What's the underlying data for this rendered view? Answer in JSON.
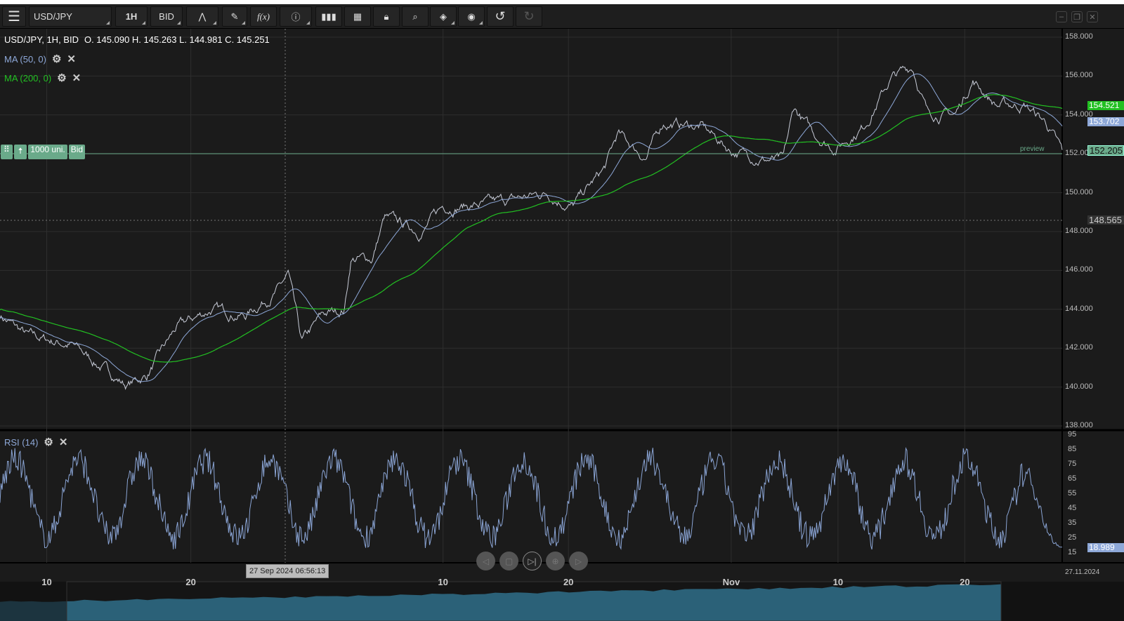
{
  "toolbar": {
    "symbol": "USD/JPY",
    "timeframe": "1H",
    "price_side": "BID",
    "icons": [
      "menu-icon",
      "chart-type-icon",
      "draw-icon",
      "function-icon",
      "info-icon",
      "indicators-icon",
      "calendar-icon",
      "lock-icon",
      "zoom-icon",
      "theme-icon",
      "visibility-icon",
      "undo-icon",
      "redo-icon"
    ]
  },
  "header": {
    "info": "USD/JPY, 1H, BID",
    "ohlc": "O. 145.090 H. 145.263 L. 144.981 C. 145.251"
  },
  "indicators": {
    "ma50": "MA (50, 0)",
    "ma200": "MA (200, 0)",
    "rsi": "RSI (14)"
  },
  "order_line": {
    "units": "1000 uni.",
    "side": "Bid",
    "preview": "preview"
  },
  "price_tags": {
    "ma200": "154.521",
    "ma50": "153.702",
    "bid": "152.205",
    "cursor": "148.565",
    "rsi": "18.989"
  },
  "cursor_time": "27 Sep 2024 06:56:13",
  "colors": {
    "price": "#c8ccd8",
    "ma50": "#8ea8d8",
    "ma200": "#22c022",
    "rsi": "#8aa4d4",
    "accent_tag": "#6aaa8a",
    "volume": "#2f6f89"
  },
  "chart_data": {
    "type": "line",
    "title": "USD/JPY, 1H, BID",
    "ylim": [
      138,
      158
    ],
    "yticks": [
      "158.000",
      "156.000",
      "154.000",
      "152.000",
      "150.000",
      "148.000",
      "146.000",
      "144.000",
      "142.000",
      "140.000",
      "138.000"
    ],
    "rsi_ticks": [
      "95",
      "85",
      "75",
      "65",
      "55",
      "45",
      "35",
      "25",
      "15"
    ],
    "xticks": [
      {
        "label": "10",
        "day": 3.5
      },
      {
        "label": "20",
        "day": 14.3
      },
      {
        "label": "10",
        "day": 33.2
      },
      {
        "label": "20",
        "day": 42.6
      },
      {
        "label": "Nov",
        "day": 54.8
      },
      {
        "label": "10",
        "day": 62.8
      },
      {
        "label": "20",
        "day": 72.3
      }
    ],
    "end_date": "27.11.2024",
    "close_anchors_day_price": [
      [
        0,
        143.7
      ],
      [
        2.1,
        142.6
      ],
      [
        5.3,
        142.2
      ],
      [
        9.5,
        140.1
      ],
      [
        11,
        140.6
      ],
      [
        13.2,
        143
      ],
      [
        15.8,
        144
      ],
      [
        18.4,
        143.7
      ],
      [
        21,
        145.1
      ],
      [
        21.6,
        145.8
      ],
      [
        22.6,
        142.2
      ],
      [
        24.2,
        143.7
      ],
      [
        25.8,
        144
      ],
      [
        26.3,
        146.6
      ],
      [
        27.9,
        146.6
      ],
      [
        28.8,
        148.7
      ],
      [
        31.6,
        148
      ],
      [
        33.2,
        149.3
      ],
      [
        36.8,
        149.4
      ],
      [
        41,
        150
      ],
      [
        42.9,
        149.3
      ],
      [
        45.3,
        151.2
      ],
      [
        46.3,
        153
      ],
      [
        48.4,
        151.8
      ],
      [
        49.7,
        153.6
      ],
      [
        52.6,
        153.4
      ],
      [
        54.7,
        152.2
      ],
      [
        56.8,
        151.8
      ],
      [
        58.7,
        151.6
      ],
      [
        59.5,
        154.3
      ],
      [
        61,
        153
      ],
      [
        62.6,
        152.3
      ],
      [
        64.7,
        153.4
      ],
      [
        66.8,
        155.9
      ],
      [
        68.4,
        156.5
      ],
      [
        69.5,
        154.1
      ],
      [
        71.6,
        154
      ],
      [
        72.9,
        155.8
      ],
      [
        74.7,
        154.5
      ],
      [
        76.8,
        154.5
      ],
      [
        78.4,
        153.6
      ],
      [
        79.5,
        152.2
      ]
    ],
    "last_day": 79.6
  }
}
